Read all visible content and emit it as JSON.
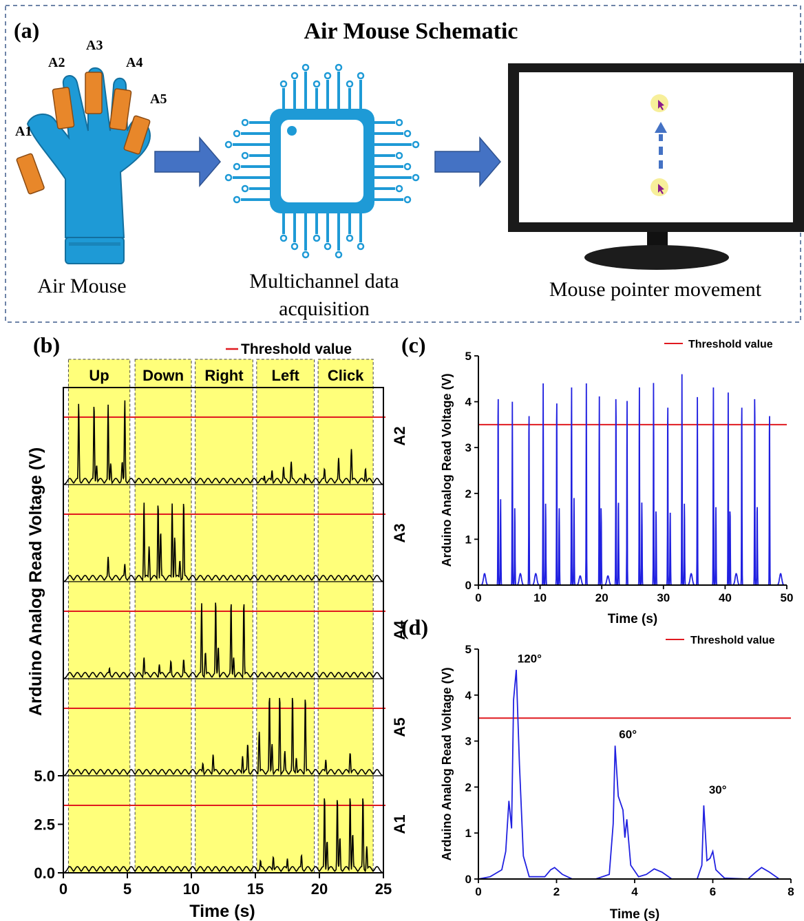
{
  "figure": {
    "panel_a": {
      "letter": "(a)",
      "title": "Air Mouse Schematic",
      "sensor_labels": [
        "A1",
        "A2",
        "A3",
        "A4",
        "A5"
      ],
      "caption_glove": "Air Mouse",
      "caption_chip_line1": "Multichannel data",
      "caption_chip_line2": "acquisition",
      "caption_monitor": "Mouse pointer movement",
      "colors": {
        "glove": "#1e9ad6",
        "sensor": "#e8872a",
        "chip": "#1e9ad6",
        "arrow": "#4472c4",
        "dashed_border": "#3d5a8a"
      }
    },
    "panel_b": {
      "letter": "(b)"
    },
    "panel_c": {
      "letter": "(c)"
    },
    "panel_d": {
      "letter": "(d)"
    }
  },
  "chart_data": [
    {
      "id": "b",
      "type": "line",
      "xlabel": "Time (s)",
      "ylabel": "Arduino Analog Read Voltage (V)",
      "xlim": [
        0,
        25
      ],
      "xticks": [
        "0",
        "5",
        "10",
        "15",
        "20",
        "25"
      ],
      "yticks": [
        "0.0",
        "2.5",
        "5.0"
      ],
      "legend": "Threshold value",
      "threshold": 3.8,
      "channel_ylim": [
        0,
        5
      ],
      "line_color": "#000000",
      "threshold_color": "#e0191f",
      "highlight_color": "#ffff7a",
      "gestures": [
        {
          "label": "Up",
          "start": 0.4,
          "end": 5.2
        },
        {
          "label": "Down",
          "start": 5.6,
          "end": 10.0
        },
        {
          "label": "Right",
          "start": 10.3,
          "end": 14.8
        },
        {
          "label": "Left",
          "start": 15.1,
          "end": 19.6
        },
        {
          "label": "Click",
          "start": 19.9,
          "end": 24.2
        }
      ],
      "channels": [
        {
          "name": "A2",
          "active_gesture": "Up",
          "peaks": [
            [
              1.2,
              4.6
            ],
            [
              2.4,
              4.6
            ],
            [
              3.5,
              4.5
            ],
            [
              4.8,
              4.8
            ]
          ],
          "small_peaks": [
            [
              2.6,
              1.1
            ],
            [
              3.7,
              1.2
            ],
            [
              4.6,
              1.3
            ],
            [
              15.7,
              0.5
            ],
            [
              16.3,
              0.8
            ],
            [
              17.2,
              1.0
            ],
            [
              17.8,
              1.3
            ],
            [
              18.9,
              0.6
            ],
            [
              20.4,
              0.9
            ],
            [
              21.5,
              1.5
            ],
            [
              22.5,
              2.0
            ],
            [
              23.6,
              0.9
            ]
          ]
        },
        {
          "name": "A3",
          "active_gesture": "Down",
          "peaks": [
            [
              6.3,
              4.5
            ],
            [
              7.4,
              4.5
            ],
            [
              8.5,
              4.4
            ],
            [
              9.4,
              4.6
            ]
          ],
          "small_peaks": [
            [
              3.5,
              1.4
            ],
            [
              4.8,
              1.0
            ],
            [
              6.7,
              2.0
            ],
            [
              7.6,
              2.8
            ],
            [
              8.7,
              2.5
            ],
            [
              9.1,
              1.2
            ]
          ]
        },
        {
          "name": "A4",
          "active_gesture": "Right",
          "peaks": [
            [
              10.8,
              4.3
            ],
            [
              11.9,
              4.5
            ],
            [
              13.1,
              4.4
            ],
            [
              14.1,
              4.4
            ]
          ],
          "small_peaks": [
            [
              3.6,
              0.6
            ],
            [
              6.3,
              1.2
            ],
            [
              7.5,
              0.8
            ],
            [
              8.4,
              1.0
            ],
            [
              9.4,
              1.1
            ],
            [
              11.1,
              1.5
            ],
            [
              12.1,
              1.8
            ],
            [
              13.3,
              1.2
            ]
          ]
        },
        {
          "name": "A5",
          "active_gesture": "Left",
          "peaks": [
            [
              16.1,
              4.6
            ],
            [
              16.9,
              4.6
            ],
            [
              17.9,
              4.6
            ],
            [
              18.9,
              4.5
            ]
          ],
          "small_peaks": [
            [
              10.9,
              0.7
            ],
            [
              11.7,
              1.2
            ],
            [
              14.0,
              1.1
            ],
            [
              14.4,
              1.8
            ],
            [
              15.3,
              2.5
            ],
            [
              16.3,
              1.8
            ],
            [
              17.3,
              1.4
            ],
            [
              18.2,
              1.0
            ],
            [
              20.5,
              0.9
            ],
            [
              22.4,
              1.3
            ]
          ]
        },
        {
          "name": "A1",
          "active_gesture": "Click",
          "peaks": [
            [
              20.4,
              4.4
            ],
            [
              21.4,
              4.3
            ],
            [
              22.4,
              4.4
            ],
            [
              23.4,
              4.4
            ]
          ],
          "small_peaks": [
            [
              15.4,
              0.7
            ],
            [
              16.4,
              0.9
            ],
            [
              17.5,
              0.8
            ],
            [
              18.6,
              1.0
            ],
            [
              20.6,
              1.8
            ],
            [
              21.6,
              2.0
            ],
            [
              22.6,
              2.2
            ],
            [
              23.7,
              1.5
            ]
          ]
        }
      ]
    },
    {
      "id": "c",
      "type": "line",
      "xlabel": "Time (s)",
      "ylabel": "Arduino Analog Read Voltage (V)",
      "xlim": [
        0,
        50
      ],
      "ylim": [
        0,
        5
      ],
      "xticks": [
        0,
        10,
        20,
        30,
        40,
        50
      ],
      "yticks": [
        0,
        1,
        2,
        3,
        4,
        5
      ],
      "legend": "Threshold value",
      "threshold": 3.5,
      "line_color": "#2020e0",
      "threshold_color": "#e0191f",
      "peaks": [
        [
          3.2,
          4.4
        ],
        [
          5.5,
          4.0
        ],
        [
          8.2,
          4.0
        ],
        [
          10.5,
          4.4
        ],
        [
          12.7,
          4.3
        ],
        [
          15.1,
          4.4
        ],
        [
          17.5,
          4.4
        ],
        [
          19.6,
          4.2
        ],
        [
          22.3,
          4.4
        ],
        [
          24.1,
          4.1
        ],
        [
          26.1,
          4.4
        ],
        [
          28.4,
          4.5
        ],
        [
          30.7,
          4.2
        ],
        [
          33.0,
          4.6
        ],
        [
          35.5,
          4.1
        ],
        [
          38.1,
          4.4
        ],
        [
          40.5,
          4.2
        ],
        [
          42.7,
          4.2
        ],
        [
          44.8,
          4.4
        ],
        [
          47.2,
          4.0
        ]
      ],
      "secondary_peaks": [
        [
          3.6,
          1.9
        ],
        [
          5.9,
          1.7
        ],
        [
          10.9,
          1.8
        ],
        [
          13.1,
          1.7
        ],
        [
          15.5,
          1.9
        ],
        [
          19.9,
          1.7
        ],
        [
          22.7,
          1.9
        ],
        [
          26.5,
          1.8
        ],
        [
          28.8,
          1.7
        ],
        [
          31.1,
          1.6
        ],
        [
          33.4,
          1.8
        ],
        [
          38.5,
          1.7
        ],
        [
          40.8,
          1.7
        ],
        [
          45.2,
          1.8
        ]
      ],
      "small_bumps": [
        [
          1.0,
          0.25
        ],
        [
          6.8,
          0.25
        ],
        [
          9.3,
          0.25
        ],
        [
          16.5,
          0.2
        ],
        [
          21.0,
          0.2
        ],
        [
          34.5,
          0.25
        ],
        [
          41.8,
          0.25
        ],
        [
          49.0,
          0.25
        ]
      ]
    },
    {
      "id": "d",
      "type": "line",
      "xlabel": "Time (s)",
      "ylabel": "Arduino Analog Read Voltage (V)",
      "xlim": [
        0,
        8
      ],
      "ylim": [
        0,
        5
      ],
      "xticks": [
        0,
        2,
        4,
        6,
        8
      ],
      "yticks": [
        0,
        1,
        2,
        3,
        4,
        5
      ],
      "legend": "Threshold value",
      "threshold": 3.5,
      "line_color": "#2020e0",
      "threshold_color": "#e0191f",
      "annotations": [
        {
          "text": "120°",
          "x": 1.0,
          "y": 4.65
        },
        {
          "text": "60°",
          "x": 3.6,
          "y": 3.0
        },
        {
          "text": "30°",
          "x": 5.9,
          "y": 1.8
        }
      ],
      "points": [
        [
          0.0,
          0.0
        ],
        [
          0.3,
          0.05
        ],
        [
          0.6,
          0.2
        ],
        [
          0.7,
          0.6
        ],
        [
          0.78,
          1.7
        ],
        [
          0.85,
          1.1
        ],
        [
          0.9,
          3.9
        ],
        [
          0.97,
          4.55
        ],
        [
          1.05,
          2.5
        ],
        [
          1.15,
          0.5
        ],
        [
          1.3,
          0.05
        ],
        [
          1.7,
          0.05
        ],
        [
          1.85,
          0.2
        ],
        [
          1.95,
          0.25
        ],
        [
          2.15,
          0.1
        ],
        [
          2.4,
          0.0
        ],
        [
          3.0,
          0.0
        ],
        [
          3.35,
          0.1
        ],
        [
          3.45,
          1.2
        ],
        [
          3.5,
          2.9
        ],
        [
          3.58,
          1.8
        ],
        [
          3.7,
          1.5
        ],
        [
          3.75,
          0.9
        ],
        [
          3.8,
          1.3
        ],
        [
          3.9,
          0.3
        ],
        [
          4.1,
          0.05
        ],
        [
          4.3,
          0.1
        ],
        [
          4.5,
          0.22
        ],
        [
          4.7,
          0.15
        ],
        [
          4.95,
          0.0
        ],
        [
          5.6,
          0.0
        ],
        [
          5.72,
          0.3
        ],
        [
          5.77,
          1.6
        ],
        [
          5.85,
          0.4
        ],
        [
          5.93,
          0.45
        ],
        [
          6.0,
          0.6
        ],
        [
          6.08,
          0.2
        ],
        [
          6.3,
          0.02
        ],
        [
          6.9,
          0.0
        ],
        [
          7.1,
          0.15
        ],
        [
          7.25,
          0.25
        ],
        [
          7.45,
          0.15
        ],
        [
          7.7,
          0.0
        ],
        [
          8.0,
          0.0
        ]
      ]
    }
  ]
}
